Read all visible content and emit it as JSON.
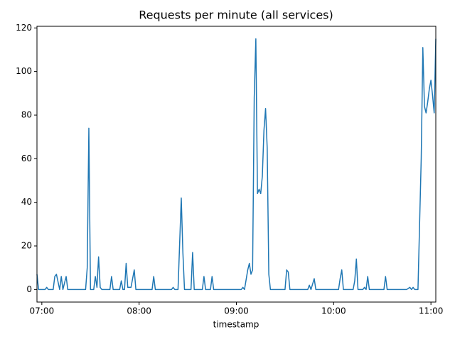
{
  "chart_data": {
    "type": "line",
    "title": "Requests per minute (all services)",
    "x_label": "timestamp",
    "x": [
      "06:57",
      "06:58",
      "07:02",
      "07:03",
      "07:04",
      "07:07",
      "07:08",
      "07:09",
      "07:11",
      "07:12",
      "07:13",
      "07:15",
      "07:16",
      "07:27",
      "07:28",
      "07:29",
      "07:30",
      "07:32",
      "07:33",
      "07:34",
      "07:35",
      "07:36",
      "07:37",
      "07:42",
      "07:43",
      "07:44",
      "07:48",
      "07:49",
      "07:50",
      "07:51",
      "07:52",
      "07:53",
      "07:55",
      "07:57",
      "07:58",
      "08:08",
      "08:09",
      "08:10",
      "08:20",
      "08:21",
      "08:22",
      "08:24",
      "08:26",
      "08:27",
      "08:28",
      "08:32",
      "08:33",
      "08:34",
      "08:39",
      "08:40",
      "08:41",
      "08:44",
      "08:45",
      "08:46",
      "09:03",
      "09:04",
      "09:05",
      "09:07",
      "09:08",
      "09:09",
      "09:10",
      "09:11",
      "09:12",
      "09:13",
      "09:14",
      "09:15",
      "09:16",
      "09:17",
      "09:18",
      "09:19",
      "09:20",
      "09:21",
      "09:30",
      "09:31",
      "09:32",
      "09:33",
      "09:44",
      "09:45",
      "09:46",
      "09:48",
      "09:49",
      "10:03",
      "10:04",
      "10:05",
      "10:06",
      "10:12",
      "10:13",
      "10:14",
      "10:15",
      "10:18",
      "10:19",
      "10:20",
      "10:21",
      "10:22",
      "10:31",
      "10:32",
      "10:33",
      "10:45",
      "10:47",
      "10:48",
      "10:49",
      "10:50",
      "10:52",
      "10:54",
      "10:55",
      "10:56",
      "10:57",
      "10:58",
      "10:59",
      "11:00",
      "11:01",
      "11:02",
      "11:03"
    ],
    "values": [
      7,
      0,
      0,
      1,
      0,
      0,
      6,
      7,
      0,
      6,
      0,
      6,
      0,
      0,
      10,
      74,
      0,
      0,
      6,
      1,
      15,
      1,
      0,
      0,
      6,
      0,
      0,
      4,
      0,
      0,
      12,
      1,
      1,
      9,
      0,
      0,
      6,
      0,
      0,
      1,
      0,
      0,
      42,
      17,
      0,
      0,
      17,
      0,
      0,
      6,
      0,
      0,
      6,
      0,
      0,
      1,
      0,
      9,
      12,
      7,
      9,
      88,
      115,
      44,
      46,
      44,
      52,
      73,
      83,
      65,
      7,
      0,
      0,
      9,
      8,
      0,
      0,
      2,
      0,
      5,
      0,
      0,
      5,
      9,
      0,
      0,
      4,
      14,
      0,
      0,
      1,
      0,
      6,
      0,
      0,
      6,
      0,
      0,
      1,
      0,
      1,
      0,
      0,
      60,
      111,
      84,
      81,
      86,
      92,
      96,
      89,
      81,
      115
    ],
    "color": "#1f77b4",
    "xlim": [
      "06:57",
      "11:03"
    ],
    "xticks": [
      "07:00",
      "08:00",
      "09:00",
      "10:00",
      "11:00"
    ],
    "ylim": [
      -5.75,
      120.75
    ],
    "yticks": [
      0,
      20,
      40,
      60,
      80,
      100,
      120
    ]
  }
}
